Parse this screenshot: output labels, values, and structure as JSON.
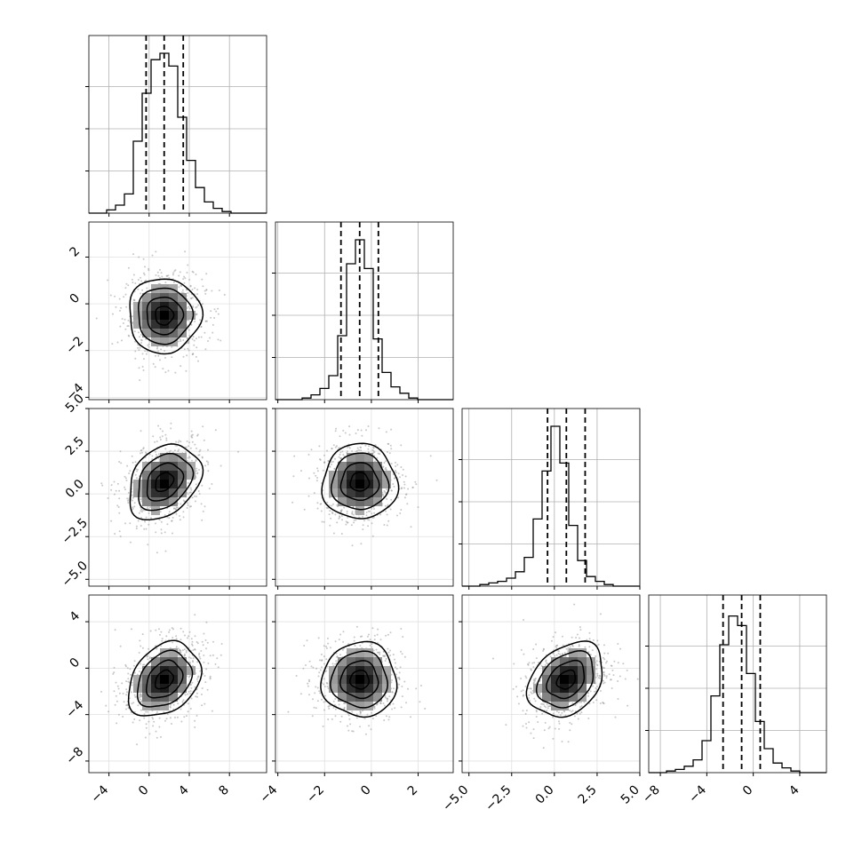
{
  "chart_data": {
    "type": "corner",
    "grid": true,
    "ticks": {
      "0": {
        "values": [
          -4,
          0,
          4,
          8
        ],
        "labels": [
          "−4",
          "0",
          "4",
          "8"
        ]
      },
      "1": {
        "values": [
          -4,
          -2,
          0,
          2
        ],
        "labels": [
          "−4",
          "−2",
          "0",
          "2"
        ]
      },
      "2": {
        "values": [
          -5,
          -2.5,
          0,
          2.5,
          5
        ],
        "labels": [
          "−5.0",
          "−2.5",
          "0.0",
          "2.5",
          "5.0"
        ]
      },
      "3": {
        "values": [
          -8,
          -4,
          0,
          4
        ],
        "labels": [
          "−8",
          "−4",
          "0",
          "4"
        ]
      }
    },
    "ranges": [
      [
        -6.0,
        11.7
      ],
      [
        -4.1,
        3.5
      ],
      [
        -5.4,
        5.0
      ],
      [
        -9.0,
        6.3
      ]
    ],
    "means": [
      1.5,
      -0.5,
      0.7,
      -1.0
    ],
    "sds": [
      1.8,
      0.8,
      1.1,
      1.6
    ],
    "correlations": {
      "1,0": 0.0,
      "2,0": 0.3,
      "2,1": 0.0,
      "3,0": 0.3,
      "3,1": 0.0,
      "3,2": 0.3
    },
    "quantiles": [
      [
        -0.3,
        1.5,
        3.4
      ],
      [
        -1.3,
        -0.5,
        0.3
      ],
      [
        -0.4,
        0.7,
        1.8
      ],
      [
        -2.6,
        -1.0,
        0.6
      ]
    ],
    "histograms": [
      [
        0.0,
        0.0,
        0.02,
        0.05,
        0.12,
        0.45,
        0.75,
        0.96,
        1.0,
        0.92,
        0.6,
        0.33,
        0.16,
        0.07,
        0.03,
        0.01,
        0.0,
        0.0,
        0.0,
        0.0
      ],
      [
        0.0,
        0.0,
        0.0,
        0.01,
        0.03,
        0.07,
        0.15,
        0.4,
        0.85,
        1.0,
        0.82,
        0.38,
        0.17,
        0.08,
        0.04,
        0.01,
        0.0,
        0.0,
        0.0,
        0.0
      ],
      [
        0.0,
        0.0,
        0.01,
        0.02,
        0.03,
        0.05,
        0.09,
        0.18,
        0.42,
        0.72,
        1.0,
        0.77,
        0.38,
        0.16,
        0.06,
        0.03,
        0.01,
        0.0,
        0.0,
        0.0
      ],
      [
        0.0,
        0.0,
        0.01,
        0.02,
        0.04,
        0.08,
        0.2,
        0.48,
        0.8,
        0.98,
        0.92,
        0.62,
        0.32,
        0.15,
        0.06,
        0.03,
        0.01,
        0.0,
        0.0,
        0.0
      ]
    ]
  }
}
